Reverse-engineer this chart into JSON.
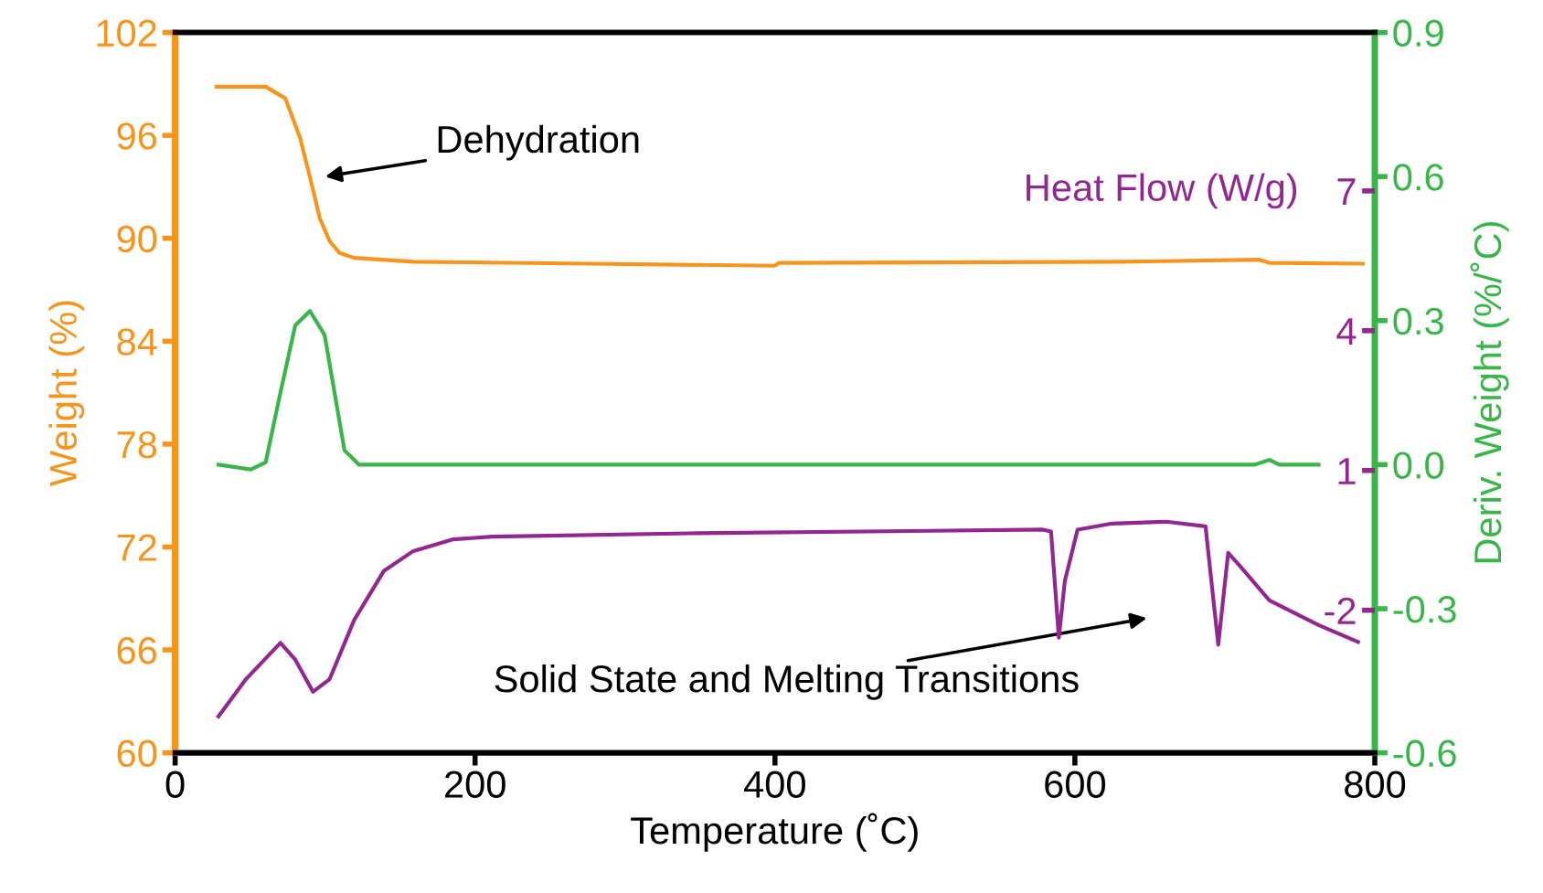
{
  "chart_data": {
    "type": "line",
    "xlabel": "Temperature (˚C)",
    "ylabel": "Weight (%)",
    "y2label": "Deriv. Weight (%/˚C)",
    "y3label": "Heat Flow (W/g)",
    "xlim": [
      0,
      800
    ],
    "xticks": [
      0,
      200,
      400,
      600,
      800
    ],
    "ylim": [
      60,
      102
    ],
    "yticks": [
      60,
      66,
      72,
      78,
      84,
      90,
      96,
      102
    ],
    "y2lim": [
      -0.6,
      0.9
    ],
    "y2ticks": [
      -0.6,
      -0.3,
      {
        "value": 0,
        "label": "0.0"
      },
      0.3,
      0.6,
      0.9
    ],
    "y3lim": [
      -5.06,
      10.4
    ],
    "y3ticks": [
      -2,
      1,
      4,
      7
    ],
    "legend": false,
    "grid": false,
    "marker": "none",
    "line_style": "solid",
    "series": [
      {
        "color": "#f7941d",
        "axis": "y",
        "x": [
          27.6,
          60.4,
          73.5,
          83.3,
          89.9,
          96.5,
          103,
          109.6,
          119.4,
          158.8,
          276.9,
          399.6,
          402.9,
          631,
          723,
          729.7,
          792
        ],
        "values": [
          98.84,
          98.84,
          98.16,
          95.86,
          93.57,
          91.16,
          89.84,
          89.15,
          88.86,
          88.63,
          88.52,
          88.4,
          88.57,
          88.63,
          88.75,
          88.57,
          88.52
        ]
      },
      {
        "color": "#39b54a",
        "axis": "y2",
        "x": [
          28.9,
          50.5,
          60.4,
          70.2,
          80.1,
          89.9,
          99.7,
          106.3,
          112.9,
          122.7,
          719.9,
          729.7,
          736.3,
          762.5
        ],
        "values": [
          0.0,
          -0.01,
          0.005,
          0.15,
          0.29,
          0.32,
          0.27,
          0.15,
          0.03,
          0.0,
          0.0,
          0.01,
          0.0,
          0.0
        ]
      },
      {
        "color": "#92278f",
        "axis": "y3",
        "x": [
          28.9,
          47.2,
          70.2,
          80.1,
          91.9,
          103,
          119.4,
          139.1,
          158.8,
          185,
          211.3,
          342.5,
          578.8,
          584.1,
          589.3,
          593.3,
          601.8,
          624.8,
          660.9,
          687.1,
          695.6,
          702.2,
          710,
          729.7,
          762.5,
          788.8
        ],
        "values": [
          -4.28,
          -3.48,
          -2.7,
          -3.06,
          -3.75,
          -3.48,
          -2.21,
          -1.16,
          -0.73,
          -0.48,
          -0.42,
          -0.35,
          -0.27,
          -0.31,
          -2.59,
          -1.37,
          -0.27,
          -0.14,
          -0.1,
          -0.2,
          -2.74,
          -0.77,
          -1.05,
          -1.79,
          -2.32,
          -2.68
        ]
      }
    ],
    "annotations": [
      "Dehydration",
      "Solid State and Melting Transitions"
    ]
  }
}
